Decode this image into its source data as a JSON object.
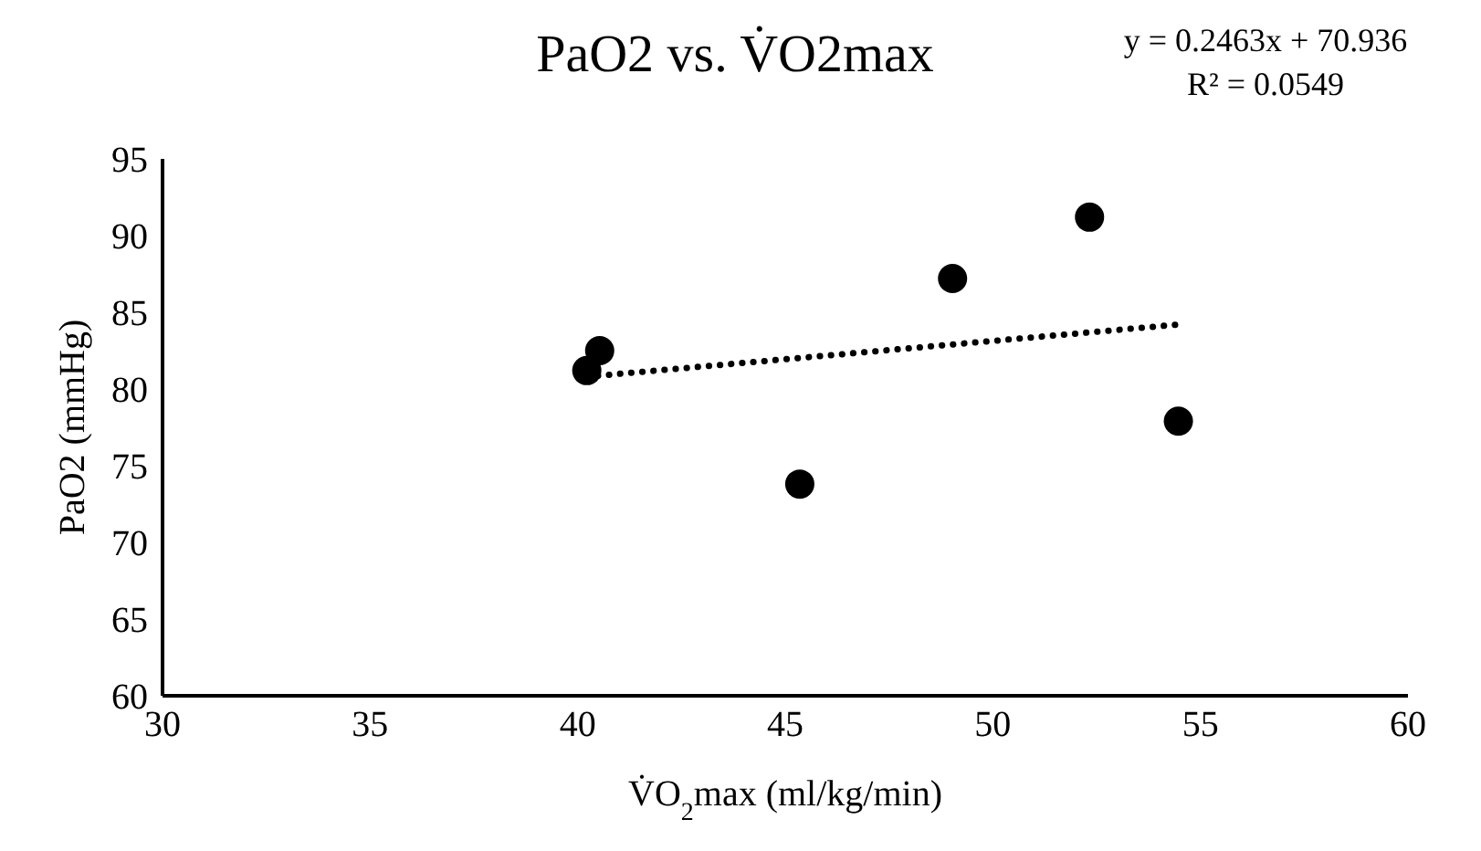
{
  "chart_data": {
    "type": "scatter",
    "title": "PaO2 vs. V̇O2max",
    "xlabel": "V̇O$_{2}$max (ml/kg/min)",
    "ylabel": "PaO2 (mmHg)",
    "annotations": [
      "y = 0.2463x + 70.936",
      "R² = 0.0549"
    ],
    "series": [
      {
        "color": "#000000",
        "marker": "circle",
        "x": [
          40.22,
          40.53,
          45.35,
          49.03,
          52.33,
          54.47
        ],
        "values": [
          81.2,
          82.5,
          73.8,
          87.2,
          91.2,
          77.9
        ]
      },
      {
        "type": "line",
        "color": "#000000",
        "marker": "none",
        "line_style": "dotted",
        "x": [
          40.22,
          54.47
        ],
        "values": [
          80.8,
          84.2
        ]
      }
    ],
    "xlim": [
      30,
      60
    ],
    "xticks": [
      30,
      35,
      40,
      45,
      50,
      55,
      60
    ],
    "ylim": [
      60,
      95
    ],
    "yticks": [
      60,
      65,
      70,
      75,
      80,
      85,
      90,
      95
    ],
    "grid": false,
    "legend": false
  }
}
